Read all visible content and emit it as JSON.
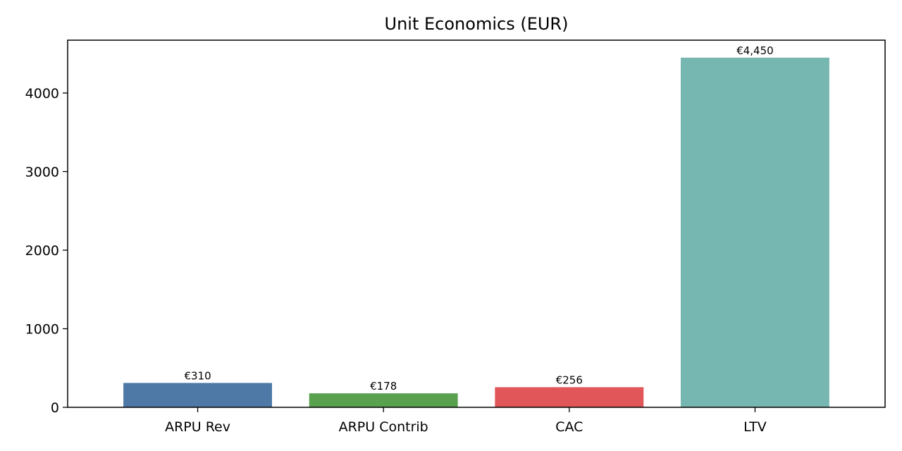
{
  "chart_data": {
    "type": "bar",
    "title": "Unit Economics (EUR)",
    "xlabel": "",
    "ylabel": "",
    "categories": [
      "ARPU Rev",
      "ARPU Contrib",
      "CAC",
      "LTV"
    ],
    "values": [
      310,
      178,
      256,
      4450
    ],
    "value_labels": [
      "€310",
      "€178",
      "€256",
      "€4,450"
    ],
    "colors": [
      "#4e79a7",
      "#59a14f",
      "#e15759",
      "#76b7b2"
    ],
    "ylim": [
      0,
      4672.5
    ],
    "yticks": [
      0,
      1000,
      2000,
      3000,
      4000
    ],
    "grid": false,
    "legend": "none"
  }
}
